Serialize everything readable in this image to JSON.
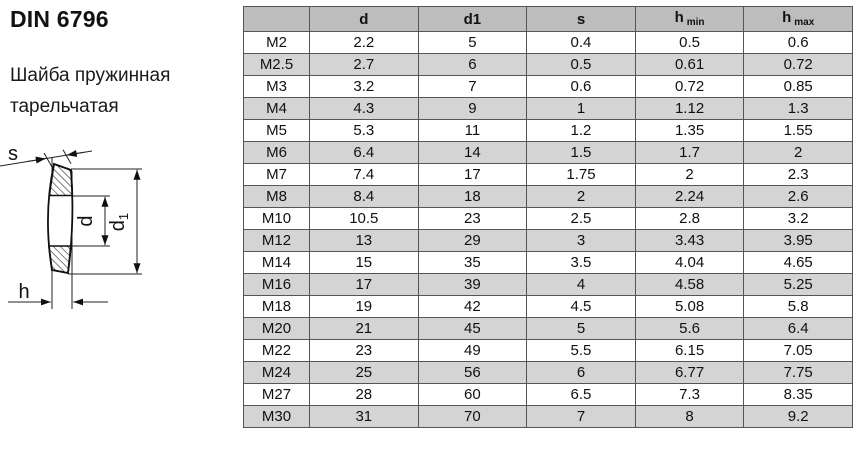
{
  "title": "DIN 6796",
  "subtitle_line1": "Шайба пружинная",
  "subtitle_line2": "тарельчатая",
  "drawing": {
    "labels": {
      "s": "s",
      "d": "d",
      "d1_base": "d",
      "d1_sub": "1",
      "h": "h"
    }
  },
  "table": {
    "columns": [
      {
        "label": ""
      },
      {
        "label": "d"
      },
      {
        "label": "d1"
      },
      {
        "label": "s"
      },
      {
        "label": "h",
        "sub": "min"
      },
      {
        "label": "h",
        "sub": "max"
      }
    ],
    "rows": [
      [
        "M2",
        "2.2",
        "5",
        "0.4",
        "0.5",
        "0.6"
      ],
      [
        "M2.5",
        "2.7",
        "6",
        "0.5",
        "0.61",
        "0.72"
      ],
      [
        "M3",
        "3.2",
        "7",
        "0.6",
        "0.72",
        "0.85"
      ],
      [
        "M4",
        "4.3",
        "9",
        "1",
        "1.12",
        "1.3"
      ],
      [
        "M5",
        "5.3",
        "11",
        "1.2",
        "1.35",
        "1.55"
      ],
      [
        "M6",
        "6.4",
        "14",
        "1.5",
        "1.7",
        "2"
      ],
      [
        "M7",
        "7.4",
        "17",
        "1.75",
        "2",
        "2.3"
      ],
      [
        "M8",
        "8.4",
        "18",
        "2",
        "2.24",
        "2.6"
      ],
      [
        "M10",
        "10.5",
        "23",
        "2.5",
        "2.8",
        "3.2"
      ],
      [
        "M12",
        "13",
        "29",
        "3",
        "3.43",
        "3.95"
      ],
      [
        "M14",
        "15",
        "35",
        "3.5",
        "4.04",
        "4.65"
      ],
      [
        "M16",
        "17",
        "39",
        "4",
        "4.58",
        "5.25"
      ],
      [
        "M18",
        "19",
        "42",
        "4.5",
        "5.08",
        "5.8"
      ],
      [
        "M20",
        "21",
        "45",
        "5",
        "5.6",
        "6.4"
      ],
      [
        "M22",
        "23",
        "49",
        "5.5",
        "6.15",
        "7.05"
      ],
      [
        "M24",
        "25",
        "56",
        "6",
        "6.77",
        "7.75"
      ],
      [
        "M27",
        "28",
        "60",
        "6.5",
        "7.3",
        "8.35"
      ],
      [
        "M30",
        "31",
        "70",
        "7",
        "8",
        "9.2"
      ]
    ]
  },
  "colors": {
    "header_bg": "#bdbdbd",
    "stripe_bg": "#d4d4d4",
    "row_bg": "#ffffff",
    "border": "#555555",
    "text": "#111111"
  }
}
